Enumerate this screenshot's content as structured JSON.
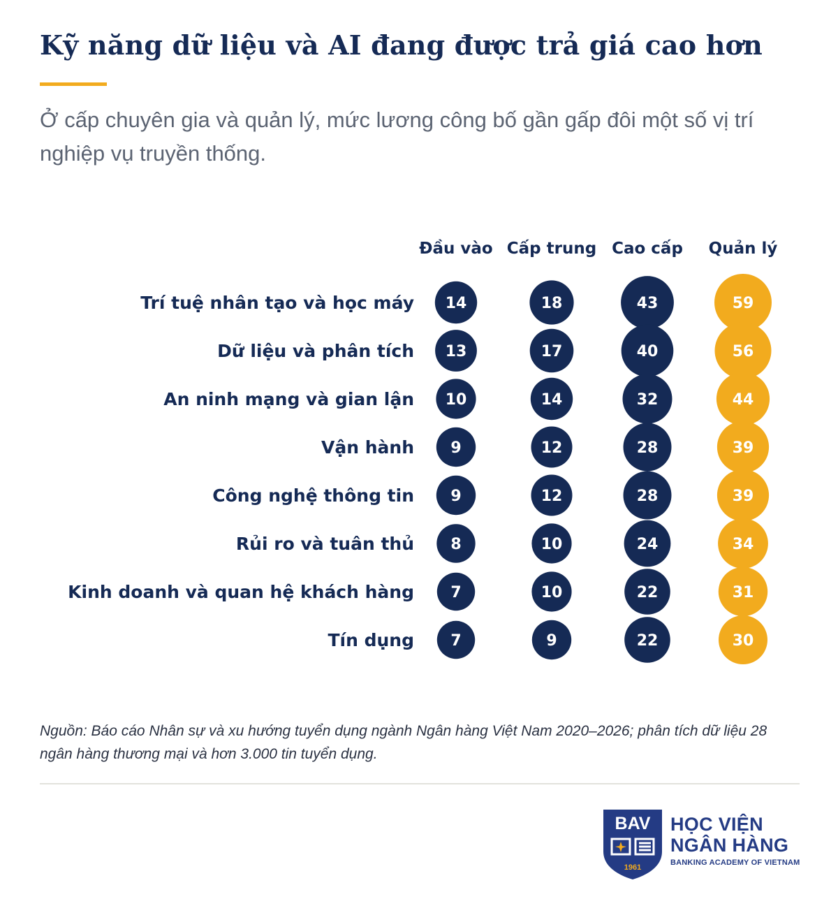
{
  "header": {
    "title": "Kỹ năng dữ liệu và AI đang được trả giá cao hơn",
    "subtitle": "Ở cấp chuyên gia và quản lý, mức lương công bố gần gấp đôi một số vị trí nghiệp vụ truyền thống."
  },
  "chart_data": {
    "type": "bubble-table",
    "title": "Kỹ năng dữ liệu và AI đang được trả giá cao hơn",
    "columns": [
      "Đầu vào",
      "Cấp trung",
      "Cao cấp",
      "Quản lý"
    ],
    "rows": [
      {
        "label": "Trí tuệ nhân tạo và học máy",
        "values": [
          14,
          18,
          43,
          59
        ]
      },
      {
        "label": "Dữ liệu và phân tích",
        "values": [
          13,
          17,
          40,
          56
        ]
      },
      {
        "label": "An ninh mạng và gian lận",
        "values": [
          10,
          14,
          32,
          44
        ]
      },
      {
        "label": "Vận hành",
        "values": [
          9,
          12,
          28,
          39
        ]
      },
      {
        "label": "Công nghệ thông tin",
        "values": [
          9,
          12,
          28,
          39
        ]
      },
      {
        "label": "Rủi ro và tuân thủ",
        "values": [
          8,
          10,
          24,
          34
        ]
      },
      {
        "label": "Kinh doanh và quan hệ khách hàng",
        "values": [
          7,
          10,
          22,
          31
        ]
      },
      {
        "label": "Tín dụng",
        "values": [
          7,
          9,
          22,
          30
        ]
      }
    ],
    "colors": {
      "navy": "#152a55",
      "highlight": "#f2ab1e"
    },
    "highlight_column": "Quản lý"
  },
  "footer": {
    "source": "Nguồn: Báo cáo Nhân sự và xu hướng tuyển dụng ngành Ngân hàng Việt Nam 2020–2026; phân tích dữ liệu 28 ngân hàng thương mại và hơn 3.000 tin tuyển dụng."
  },
  "logo": {
    "abbr": "BAV",
    "year": "1961",
    "line1": "HỌC VIỆN",
    "line2": "NGÂN HÀNG",
    "tagline": "BANKING ACADEMY OF VIETNAM",
    "color": "#243b84"
  }
}
